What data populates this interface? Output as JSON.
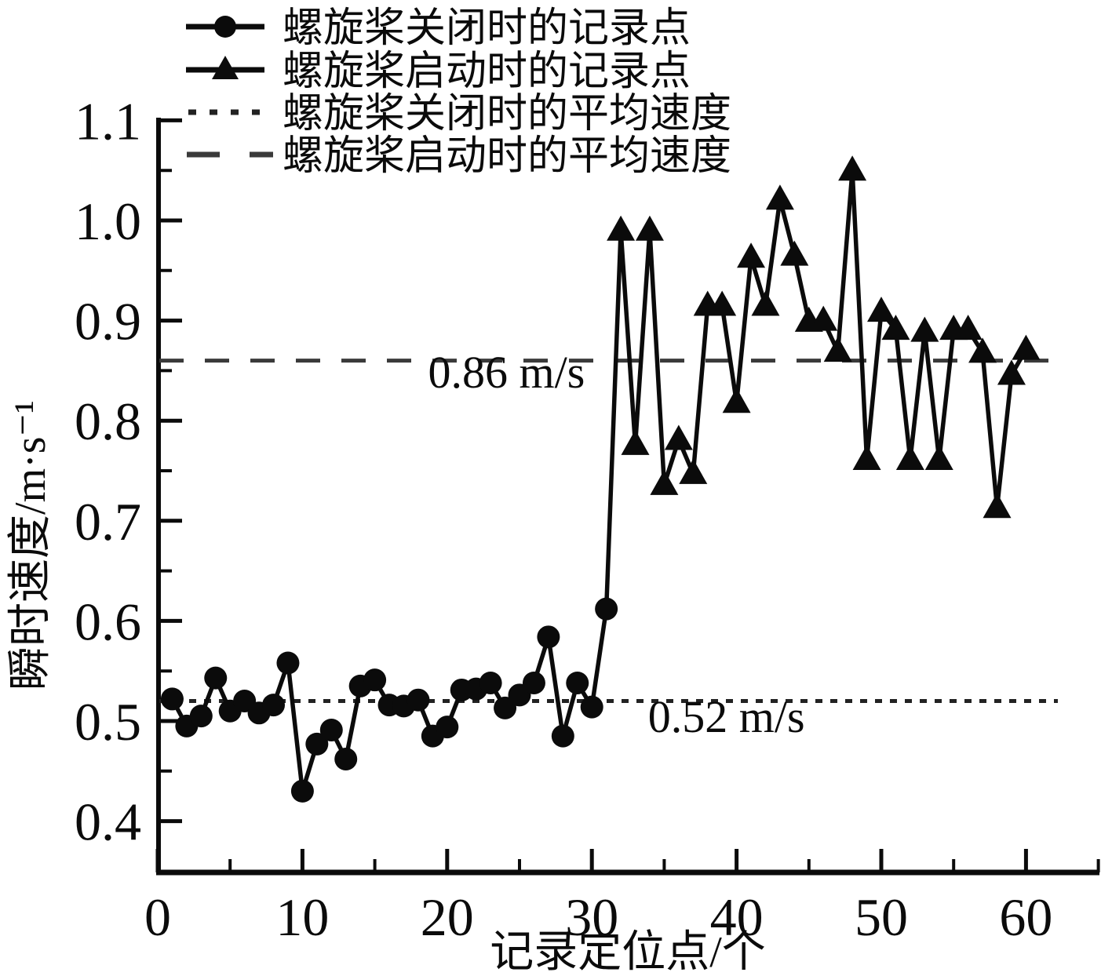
{
  "chart_data": {
    "type": "line",
    "title": "",
    "xlabel": "记录定位点/个",
    "ylabel": "瞬时速度/m·s⁻¹",
    "xlim": [
      0,
      65
    ],
    "ylim": [
      0.35,
      1.1
    ],
    "xticks_major": [
      0,
      10,
      20,
      30,
      40,
      50,
      60
    ],
    "xticks_minor": [
      5,
      15,
      25,
      35,
      45,
      55,
      65
    ],
    "yticks_major": [
      0.4,
      0.5,
      0.6,
      0.7,
      0.8,
      0.9,
      1.0,
      1.1
    ],
    "yticks_minor": [
      0.45,
      0.55,
      0.65,
      0.75,
      0.85,
      0.95,
      1.05
    ],
    "grid": false,
    "connected_series": true,
    "colors": {
      "series": "#0b0b0b",
      "mean_off": "#222222",
      "mean_on": "#3a3a3a"
    },
    "series": [
      {
        "name": "螺旋桨关闭时的记录点",
        "marker": "circle",
        "x": [
          1,
          2,
          3,
          4,
          5,
          6,
          7,
          8,
          9,
          10,
          11,
          12,
          13,
          14,
          15,
          16,
          17,
          18,
          19,
          20,
          21,
          22,
          23,
          24,
          25,
          26,
          27,
          28,
          29,
          30,
          31
        ],
        "values": [
          0.522,
          0.495,
          0.505,
          0.543,
          0.51,
          0.52,
          0.508,
          0.516,
          0.558,
          0.43,
          0.477,
          0.491,
          0.462,
          0.535,
          0.541,
          0.516,
          0.515,
          0.521,
          0.485,
          0.494,
          0.531,
          0.532,
          0.538,
          0.513,
          0.526,
          0.538,
          0.584,
          0.485,
          0.538,
          0.514,
          0.612
        ]
      },
      {
        "name": "螺旋桨启动时的记录点",
        "marker": "triangle",
        "x": [
          32,
          33,
          34,
          35,
          36,
          37,
          38,
          39,
          40,
          41,
          42,
          43,
          44,
          45,
          46,
          47,
          48,
          49,
          50,
          51,
          52,
          53,
          54,
          55,
          56,
          57,
          58,
          59,
          60
        ],
        "values": [
          0.99,
          0.776,
          0.99,
          0.736,
          0.781,
          0.747,
          0.915,
          0.915,
          0.818,
          0.963,
          0.915,
          1.021,
          0.965,
          0.899,
          0.9,
          0.869,
          1.05,
          0.761,
          0.909,
          0.891,
          0.761,
          0.889,
          0.761,
          0.891,
          0.891,
          0.868,
          0.713,
          0.846,
          0.871
        ]
      }
    ],
    "mean_lines": [
      {
        "label": "螺旋桨关闭时的平均速度",
        "style": "dotted",
        "value": 0.52,
        "x_end": 62.2
      },
      {
        "label": "螺旋桨启动时的平均速度",
        "style": "dashed",
        "value": 0.86,
        "x_end": 61.9
      }
    ],
    "annotations": [
      {
        "text": "0.86 m/s",
        "x": 24.1,
        "y": 0.833
      },
      {
        "text": "0.52 m/s",
        "x": 39.3,
        "y": 0.489
      }
    ],
    "legend": {
      "position": "top-left",
      "items": [
        {
          "label": "螺旋桨关闭时的记录点",
          "swatch": "line-circle"
        },
        {
          "label": "螺旋桨启动时的记录点",
          "swatch": "line-triangle"
        },
        {
          "label": "螺旋桨关闭时的平均速度",
          "swatch": "dotted"
        },
        {
          "label": "螺旋桨启动时的平均速度",
          "swatch": "dashed"
        }
      ]
    }
  }
}
